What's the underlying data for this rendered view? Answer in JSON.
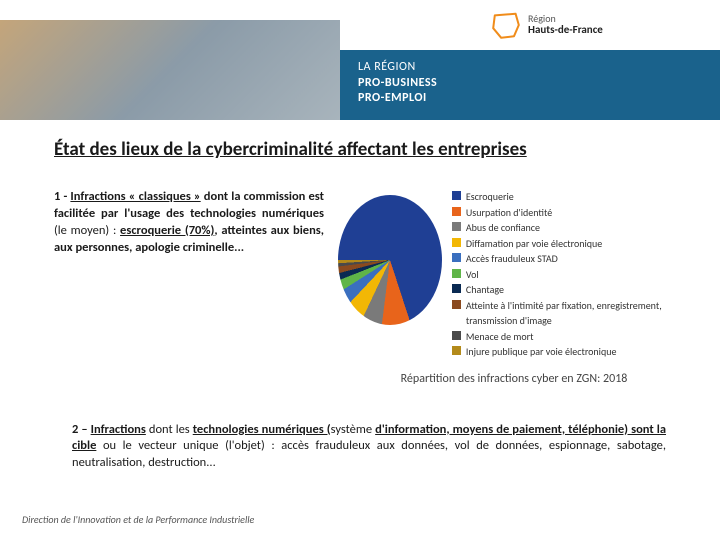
{
  "header": {
    "logo_region_label": "Région",
    "logo_region_name": "Hauts-de-France",
    "blue_line1": "LA RÉGION",
    "blue_line2": "PRO-BUSINESS",
    "blue_line3": "PRO-EMPLOI",
    "logo_outline_color": "#f08c1a",
    "blue_bar_color": "#1a628c",
    "photo_gradient_from": "#c4a57a",
    "photo_gradient_to": "#a8b4bc"
  },
  "title": "État des lieux de la cybercriminalité affectant les entreprises",
  "paragraph1": {
    "prefix": "1 - ",
    "u1": "Infractions « classiques »",
    "mid1": " dont la commission est facilitée par l'usage des ",
    "b1": "technologies numériques",
    "mid2": " (le moyen) : ",
    "u2": "escroquerie (70%)",
    "tail": ", atteintes aux biens, aux personnes, apologie criminelle..."
  },
  "chart": {
    "type": "pie",
    "caption": "Répartition des infractions cyber en ZGN: 2018",
    "background_color": "#ffffff",
    "slices": [
      {
        "label": "Escroquerie",
        "value": 70,
        "color": "#1f3f94"
      },
      {
        "label": "Usurpation d'identité",
        "value": 7,
        "color": "#e8641b"
      },
      {
        "label": "Abus de confiance",
        "value": 5,
        "color": "#7a7a7a"
      },
      {
        "label": "Diffamation par voie électronique",
        "value": 5,
        "color": "#f2b705"
      },
      {
        "label": "Accès frauduleux STAD",
        "value": 4,
        "color": "#3a6fbf"
      },
      {
        "label": "Vol",
        "value": 3,
        "color": "#5fb548"
      },
      {
        "label": "Chantage",
        "value": 2,
        "color": "#0a2a52"
      },
      {
        "label": "Atteinte à l'intimité par fixation, enregistrement, transmission d'image",
        "value": 2,
        "color": "#8a4a1f"
      },
      {
        "label": "Menace de mort",
        "value": 1,
        "color": "#4a4a4a"
      },
      {
        "label": "Injure publique par voie électronique",
        "value": 1,
        "color": "#b38a1a"
      }
    ],
    "legend_fontsize": 10,
    "caption_fontsize": 12
  },
  "paragraph2": {
    "prefix": "2 – ",
    "u1": "Infractions",
    "mid1": " dont les ",
    "u2": "technologies numériques (",
    "mid2": "système ",
    "u3": "d'information, moyens de paiement, téléphonie) sont la cible",
    "mid3": " ou le vecteur unique (l'objet) : accès frauduleux aux données, vol de données, espionnage, sabotage, neutralisation, destruction..."
  },
  "footer": "Direction de l'Innovation et de la Performance Industrielle",
  "typography": {
    "title_fontsize": 19,
    "body_fontsize": 12.5,
    "footer_fontsize": 10,
    "title_color": "#1a1a1a",
    "body_color": "#1a1a1a",
    "footer_color": "#555555"
  }
}
